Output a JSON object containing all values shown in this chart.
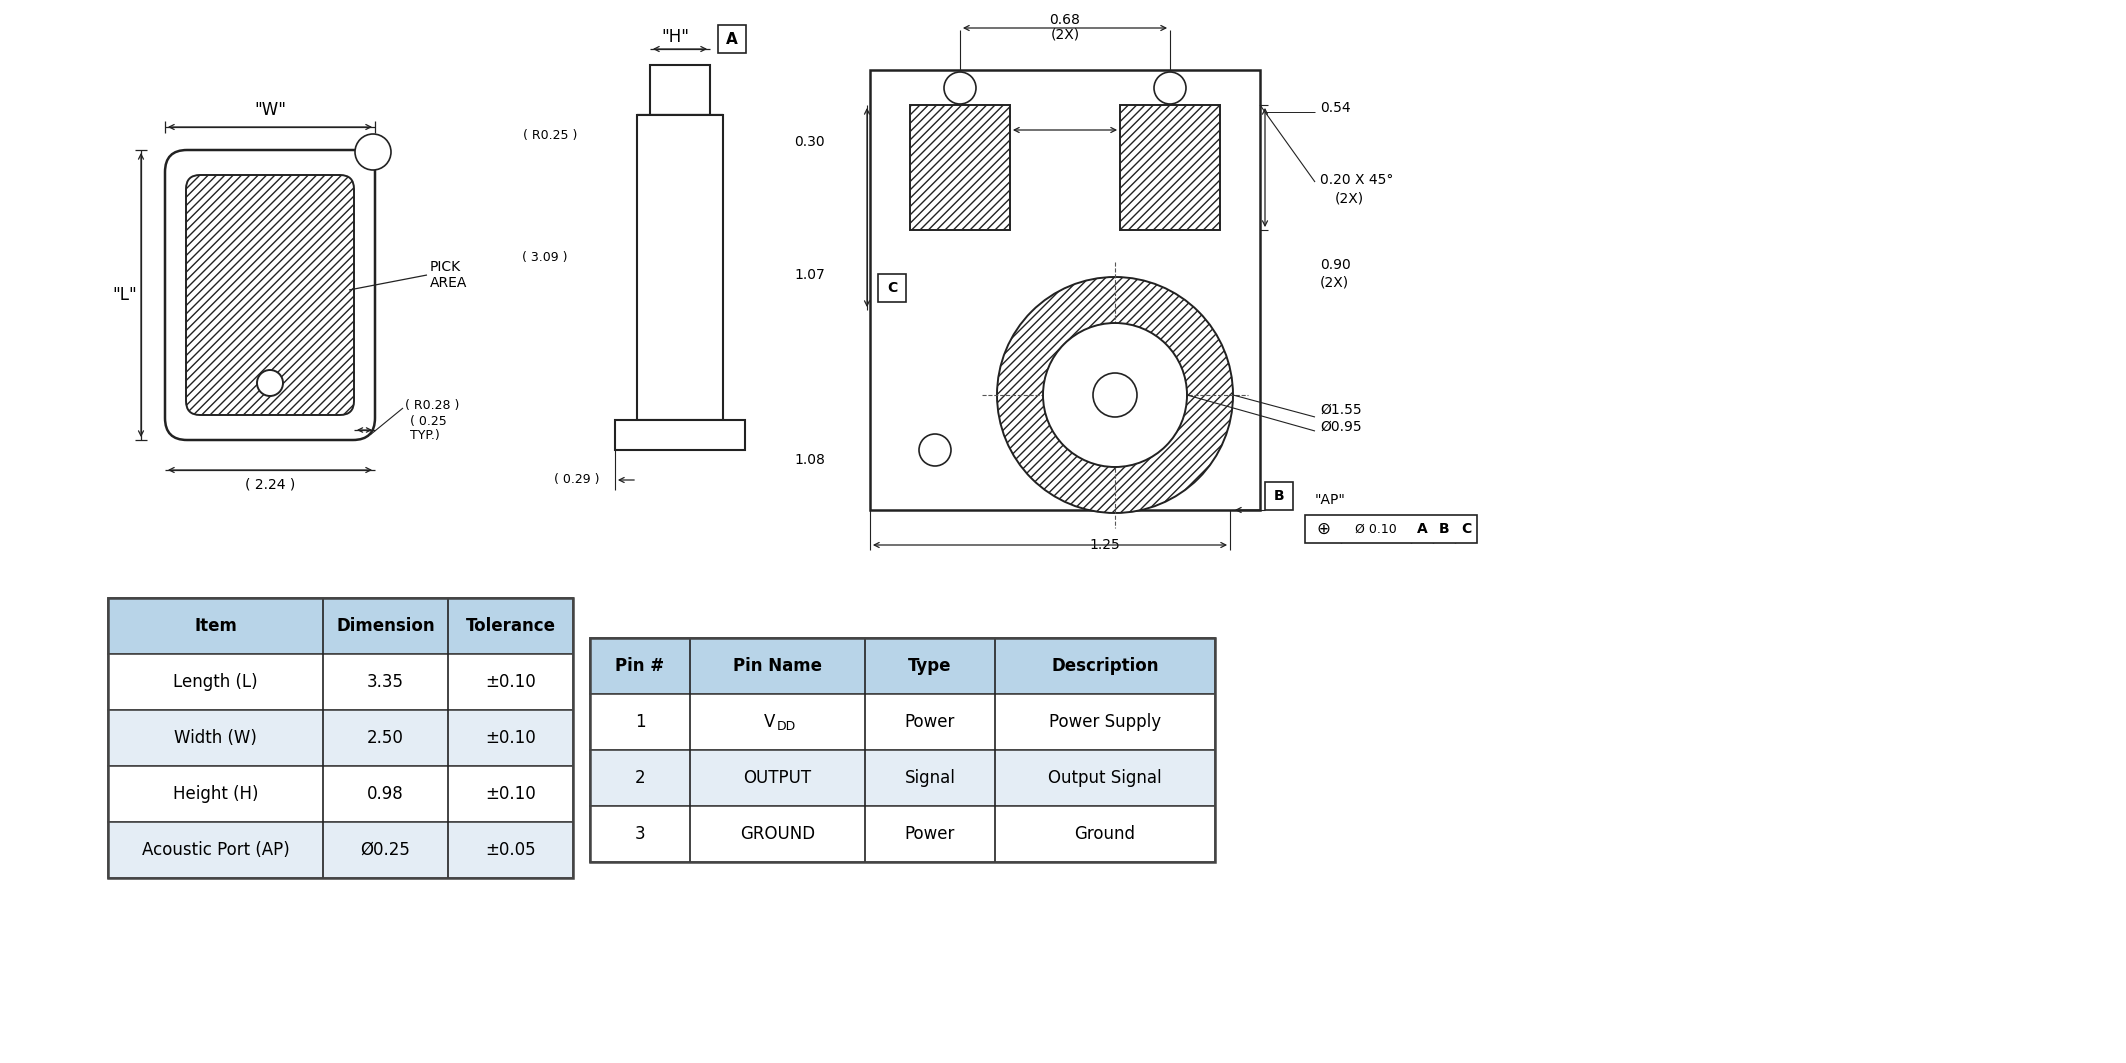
{
  "bg_color": "#ffffff",
  "table1_header": [
    "Item",
    "Dimension",
    "Tolerance"
  ],
  "table1_rows": [
    [
      "Length (L)",
      "3.35",
      "±0.10"
    ],
    [
      "Width (W)",
      "2.50",
      "±0.10"
    ],
    [
      "Height (H)",
      "0.98",
      "±0.10"
    ],
    [
      "Acoustic Port (AP)",
      "Ø0.25",
      "±0.05"
    ]
  ],
  "table2_header": [
    "Pin #",
    "Pin Name",
    "Type",
    "Description"
  ],
  "table2_rows": [
    [
      "1",
      "V_DD",
      "Power",
      "Power Supply"
    ],
    [
      "2",
      "OUTPUT",
      "Signal",
      "Output Signal"
    ],
    [
      "3",
      "GROUND",
      "Power",
      "Ground"
    ]
  ],
  "header_color": "#b8d4e8",
  "row_alt_color": "#e4edf5",
  "row_white": "#ffffff",
  "border_color": "#444444",
  "line_color": "#222222"
}
